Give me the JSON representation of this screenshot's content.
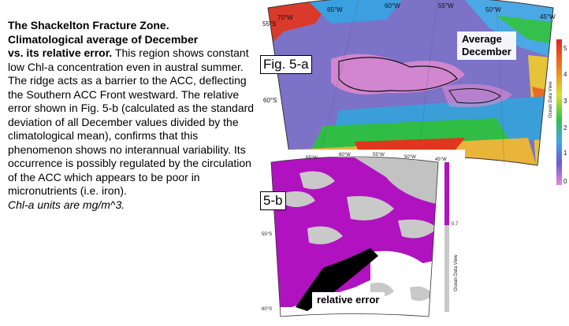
{
  "description": {
    "title_line": "The Shackelton Fracture Zone.",
    "subtitle_line": "Climatological average of December",
    "subtitle_line2": "vs. its relative error.",
    "body": "This region shows constant low Chl-a concentration even in austral summer. The ridge acts as a barrier to the ACC, deflecting the Southern ACC Front westward.  The relative error shown in Fig. 5-b (calculated as the standard deviation of all December values divided by the climatological mean), confirms that this phenomenon shows no interannual variability. Its occurrence is possibly regulated by the circulation of the ACC which appears to be poor in micronutrients (i.e. iron).",
    "units": "Chl-a units are mg/m^3."
  },
  "map_a": {
    "fig_label": "Fig. 5-a",
    "overlay_label_1": "Average",
    "overlay_label_2": "December",
    "lon_labels": [
      "70°W",
      "65°W",
      "60°W",
      "55°W",
      "50°W",
      "45°W"
    ],
    "lat_labels": [
      "55°S",
      "60°S"
    ],
    "colorbar_ticks": [
      "0",
      "1",
      "2",
      "3",
      "4",
      "5"
    ],
    "colorbar_title": "Ocean Data View"
  },
  "map_b": {
    "fig_label": "5-b",
    "overlay_label": "relative error",
    "lon_labels": [
      "65°W",
      "60°W",
      "55°W",
      "50°W",
      "45°W"
    ],
    "lat_labels": [
      "55°S",
      "60°S"
    ],
    "colorbar_ticks": [
      "",
      "0.7"
    ],
    "colorbar_title": "Ocean Data View"
  },
  "colors": {
    "chl_low": "#7a6fc9",
    "chl_mid": "#2fbf3c",
    "chl_high": "#e8221c",
    "error_high": "#b112c0",
    "error_low": "#c9c9c9"
  }
}
